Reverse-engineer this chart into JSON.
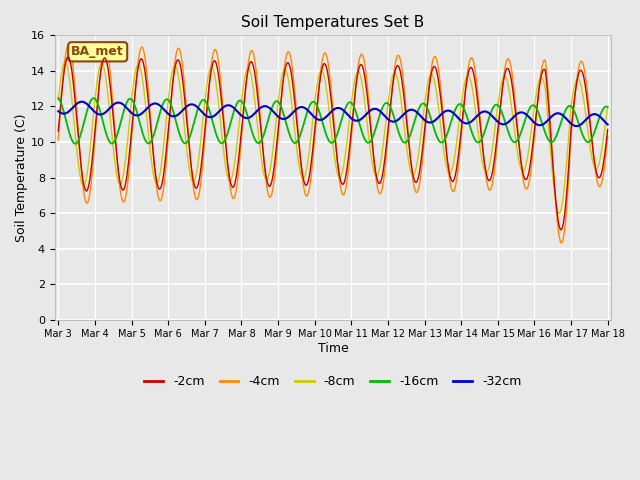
{
  "title": "Soil Temperatures Set B",
  "xlabel": "Time",
  "ylabel": "Soil Temperature (C)",
  "ylim": [
    0,
    16
  ],
  "yticks": [
    0,
    2,
    4,
    6,
    8,
    10,
    12,
    14,
    16
  ],
  "plot_bg_color": "#e8e8e8",
  "annotation_text": "BA_met",
  "annotation_bg": "#ffff99",
  "annotation_border": "#8b4513",
  "colors": {
    "-2cm": "#cc0000",
    "-4cm": "#ff8800",
    "-8cm": "#cccc00",
    "-16cm": "#00bb00",
    "-32cm": "#0000cc"
  },
  "legend_labels": [
    "-2cm",
    "-4cm",
    "-8cm",
    "-16cm",
    "-32cm"
  ],
  "x_tick_labels": [
    "Mar 3",
    "Mar 4",
    "Mar 5",
    "Mar 6",
    "Mar 7",
    "Mar 8",
    "Mar 9",
    "Mar 10",
    "Mar 11",
    "Mar 12",
    "Mar 13",
    "Mar 14",
    "Mar 15",
    "Mar 16",
    "Mar 17",
    "Mar 18"
  ],
  "figsize": [
    6.4,
    4.8
  ],
  "dpi": 100
}
